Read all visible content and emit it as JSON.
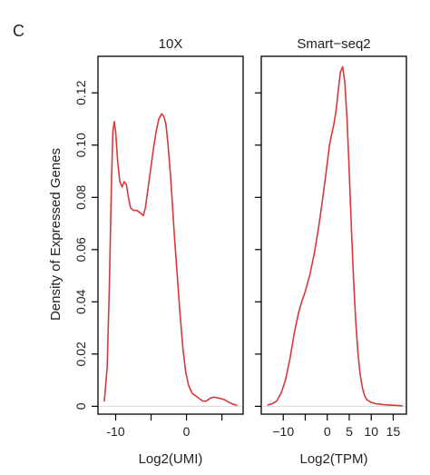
{
  "figure": {
    "panel_letter": "C",
    "y_axis_label": "Density of Expressed Genes"
  },
  "colors": {
    "curve": "#d9383a",
    "frame": "#000000"
  },
  "chart_data": [
    {
      "type": "line",
      "title": "10X",
      "xlabel": "Log2(UMI)",
      "ylabel": "Density of Expressed Genes",
      "xlim": [
        -12.5,
        8.0
      ],
      "ylim": [
        -0.003,
        0.134
      ],
      "x_ticks": [
        -10,
        -5,
        0,
        5
      ],
      "x_tick_labels": [
        "-10",
        "",
        "0",
        ""
      ],
      "y_ticks": [
        0,
        0.02,
        0.04,
        0.06,
        0.08,
        0.1,
        0.12
      ],
      "y_tick_labels": [
        "0",
        "0.02",
        "0.04",
        "0.06",
        "0.08",
        "0.10",
        "0.12"
      ],
      "series": [
        {
          "x": [
            -11.6,
            -11.2,
            -10.9,
            -10.6,
            -10.4,
            -10.2,
            -10.0,
            -9.7,
            -9.4,
            -9.1,
            -8.8,
            -8.5,
            -8.2,
            -7.9,
            -7.5,
            -7.0,
            -6.5,
            -6.1,
            -5.8,
            -5.5,
            -5.1,
            -4.7,
            -4.3,
            -3.9,
            -3.5,
            -3.2,
            -2.9,
            -2.6,
            -2.3,
            -2.0,
            -1.7,
            -1.3,
            -0.9,
            -0.5,
            -0.1,
            0.3,
            0.8,
            1.3,
            1.8,
            2.3,
            2.8,
            3.3,
            3.8,
            4.3,
            4.8,
            5.4,
            6.0,
            6.6,
            7.1
          ],
          "y": [
            0.002,
            0.015,
            0.045,
            0.085,
            0.105,
            0.109,
            0.105,
            0.093,
            0.086,
            0.084,
            0.086,
            0.085,
            0.08,
            0.076,
            0.075,
            0.075,
            0.074,
            0.073,
            0.076,
            0.082,
            0.09,
            0.098,
            0.105,
            0.11,
            0.112,
            0.111,
            0.108,
            0.1,
            0.09,
            0.078,
            0.065,
            0.05,
            0.035,
            0.022,
            0.013,
            0.008,
            0.005,
            0.004,
            0.003,
            0.002,
            0.002,
            0.003,
            0.0035,
            0.0033,
            0.003,
            0.0025,
            0.0015,
            0.0008,
            0.0004
          ]
        }
      ]
    },
    {
      "type": "line",
      "title": "Smart−seq2",
      "xlabel": "Log2(TPM)",
      "ylabel": "",
      "xlim": [
        -15.0,
        18.0
      ],
      "ylim": [
        -0.003,
        0.134
      ],
      "x_ticks": [
        -10,
        -5,
        0,
        5,
        10,
        15
      ],
      "x_tick_labels": [
        "−10",
        "",
        "0",
        "5",
        "10",
        "15"
      ],
      "y_ticks": [
        0,
        0.02,
        0.04,
        0.06,
        0.08,
        0.1,
        0.12
      ],
      "y_tick_labels": [],
      "series": [
        {
          "x": [
            -13.5,
            -12.5,
            -11.5,
            -10.5,
            -9.5,
            -8.5,
            -7.5,
            -6.5,
            -5.8,
            -5.0,
            -4.0,
            -3.0,
            -2.0,
            -1.0,
            0.0,
            0.5,
            1.0,
            1.5,
            2.0,
            2.5,
            3.0,
            3.5,
            4.0,
            4.5,
            5.0,
            5.5,
            6.0,
            6.5,
            7.0,
            7.5,
            8.0,
            8.5,
            9.0,
            10.0,
            11.0,
            12.0,
            13.0,
            14.0,
            15.0,
            16.0,
            17.0
          ],
          "y": [
            0.0005,
            0.001,
            0.002,
            0.005,
            0.01,
            0.018,
            0.028,
            0.036,
            0.04,
            0.044,
            0.05,
            0.058,
            0.068,
            0.08,
            0.093,
            0.1,
            0.104,
            0.108,
            0.113,
            0.121,
            0.128,
            0.13,
            0.124,
            0.11,
            0.09,
            0.068,
            0.048,
            0.032,
            0.02,
            0.012,
            0.007,
            0.004,
            0.0025,
            0.0015,
            0.001,
            0.0008,
            0.0006,
            0.0005,
            0.0004,
            0.0003,
            0.0002
          ]
        }
      ]
    }
  ]
}
